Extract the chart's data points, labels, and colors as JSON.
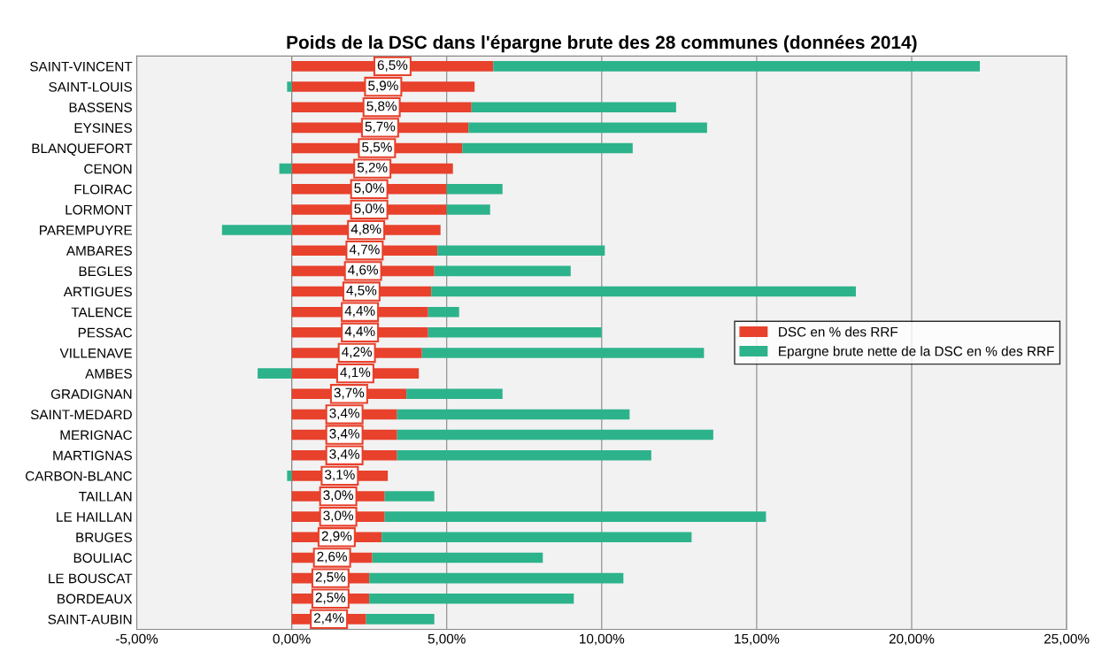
{
  "chart_data": {
    "type": "bar",
    "orientation": "horizontal",
    "stacked": true,
    "title": "Poids de la DSC dans l'épargne brute des 28 communes (données 2014)",
    "categories": [
      "SAINT-VINCENT",
      "SAINT-LOUIS",
      "BASSENS",
      "EYSINES",
      "BLANQUEFORT",
      "CENON",
      "FLOIRAC",
      "LORMONT",
      "PAREMPUYRE",
      "AMBARES",
      "BEGLES",
      "ARTIGUES",
      "TALENCE",
      "PESSAC",
      "VILLENAVE",
      "AMBES",
      "GRADIGNAN",
      "SAINT-MEDARD",
      "MERIGNAC",
      "MARTIGNAS",
      "CARBON-BLANC",
      "TAILLAN",
      "LE HAILLAN",
      "BRUGES",
      "BOULIAC",
      "LE BOUSCAT",
      "BORDEAUX",
      "SAINT-AUBIN"
    ],
    "series": [
      {
        "name": "DSC en % des RRF",
        "color": "#e8412c",
        "values": [
          6.5,
          5.9,
          5.8,
          5.7,
          5.5,
          5.2,
          5.0,
          5.0,
          4.8,
          4.7,
          4.6,
          4.5,
          4.4,
          4.4,
          4.2,
          4.1,
          3.7,
          3.4,
          3.4,
          3.4,
          3.1,
          3.0,
          3.0,
          2.9,
          2.6,
          2.5,
          2.5,
          2.4
        ],
        "value_labels": [
          "6,5%",
          "5,9%",
          "5,8%",
          "5,7%",
          "5,5%",
          "5,2%",
          "5,0%",
          "5,0%",
          "4,8%",
          "4,7%",
          "4,6%",
          "4,5%",
          "4,4%",
          "4,4%",
          "4,2%",
          "4,1%",
          "3,7%",
          "3,4%",
          "3,4%",
          "3,4%",
          "3,1%",
          "3,0%",
          "3,0%",
          "2,9%",
          "2,6%",
          "2,5%",
          "2,5%",
          "2,4%"
        ]
      },
      {
        "name": "Epargne brute nette de la DSC en % des RRF",
        "color": "#2db38c",
        "values": [
          15.7,
          -0.15,
          6.6,
          7.7,
          5.5,
          -0.4,
          1.8,
          1.4,
          -2.25,
          5.4,
          4.4,
          13.7,
          1.0,
          5.6,
          9.1,
          -1.1,
          3.1,
          7.5,
          10.2,
          8.2,
          -0.15,
          1.6,
          12.3,
          10.0,
          5.5,
          8.2,
          6.6,
          2.2
        ]
      }
    ],
    "xlim": [
      -5,
      25
    ],
    "xticks": [
      {
        "value": -5,
        "label": "-5,00%"
      },
      {
        "value": 0,
        "label": "0,00%"
      },
      {
        "value": 5,
        "label": "5,00%"
      },
      {
        "value": 10,
        "label": "10,00%"
      },
      {
        "value": 15,
        "label": "15,00%"
      },
      {
        "value": 20,
        "label": "20,00%"
      },
      {
        "value": 25,
        "label": "25,00%"
      }
    ],
    "grid": "x",
    "legend": "center right"
  }
}
